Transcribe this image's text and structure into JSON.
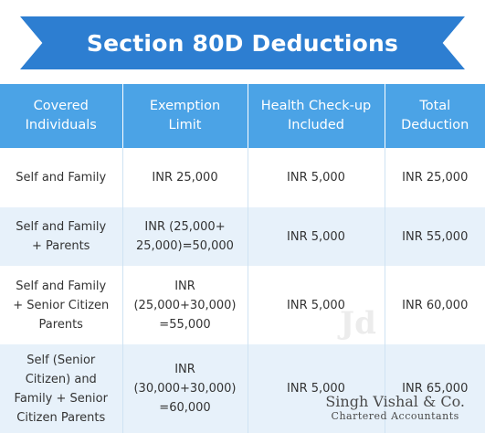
{
  "title": "Section 80D Deductions",
  "table": {
    "headers": [
      "Covered\nIndividuals",
      "Exemption\nLimit",
      "Health Check-up\nIncluded",
      "Total\nDeduction"
    ],
    "rows": [
      [
        "Self and Family",
        "INR 25,000",
        "INR 5,000",
        "INR 25,000"
      ],
      [
        "Self and Family\n+ Parents",
        "INR (25,000+\n25,000)=50,000",
        "INR 5,000",
        "INR 55,000"
      ],
      [
        "Self and Family\n+ Senior Citizen\nParents",
        "INR\n(25,000+30,000)\n=55,000",
        "INR 5,000",
        "INR 60,000"
      ],
      [
        "Self (Senior\nCitizen) and\nFamily + Senior\nCitizen Parents",
        "INR\n(30,000+30,000)\n=60,000",
        "INR 5,000",
        "INR 65,000"
      ]
    ]
  },
  "watermark": {
    "mark": "Jd",
    "firm_name": "Singh Vishal & Co.",
    "firm_sub": "Chartered Accountants"
  },
  "colors": {
    "ribbon": "#2d7ed1",
    "header": "#4ba3e6",
    "row_alt": "#e7f1fa"
  }
}
